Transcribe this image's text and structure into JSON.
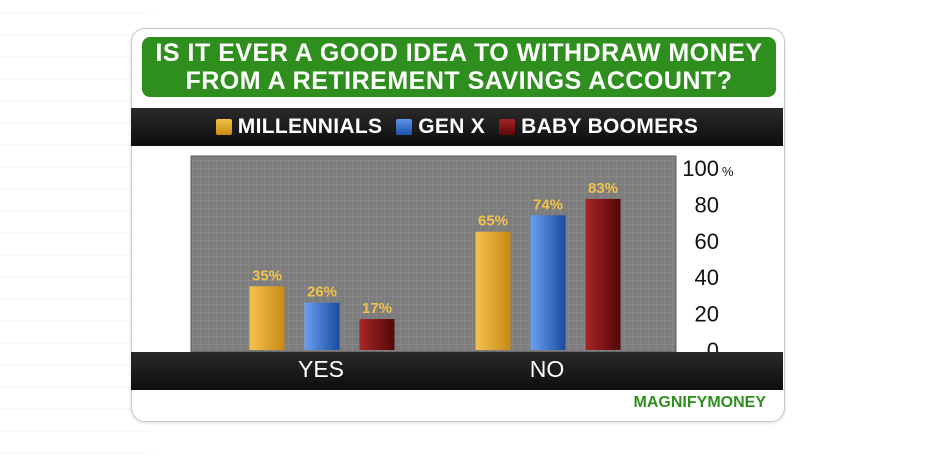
{
  "title": "IS IT EVER A GOOD IDEA TO WITHDRAW MONEY\nFROM A RETIREMENT SAVINGS ACCOUNT?",
  "source": "MAGNIFYMONEY",
  "colors": {
    "title_bg": "#2f8f1e",
    "gold": "#e0a62b",
    "blue": "#2f6fd0",
    "darkred": "#7a1212"
  },
  "chart_data": {
    "type": "bar",
    "categories": [
      "YES",
      "NO"
    ],
    "series": [
      {
        "name": "MILLENNIALS",
        "values": [
          35,
          65
        ],
        "labels": [
          "35%",
          "65%"
        ],
        "color": "#e0a62b"
      },
      {
        "name": "GEN X",
        "values": [
          26,
          74
        ],
        "labels": [
          "26%",
          "74%"
        ],
        "color": "#2f6fd0"
      },
      {
        "name": "BABY BOOMERS",
        "values": [
          17,
          83
        ],
        "labels": [
          "17%",
          "83%"
        ],
        "color": "#7a1212"
      }
    ],
    "yticks": [
      "0",
      "20",
      "40",
      "60",
      "80",
      "100"
    ],
    "ytick_unit": "%",
    "ylim": [
      0,
      100
    ],
    "grid": true,
    "legend_position": "top"
  }
}
